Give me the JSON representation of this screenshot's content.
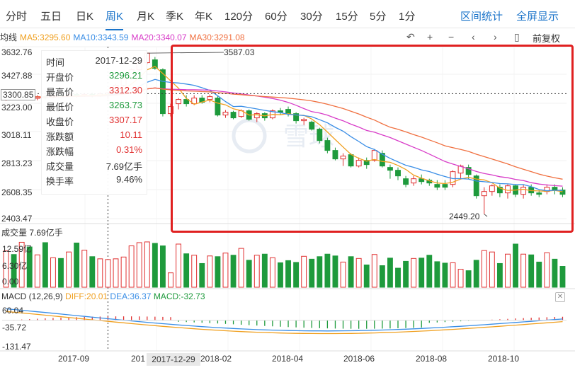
{
  "tabs": [
    {
      "label": "分时"
    },
    {
      "label": "五日"
    },
    {
      "label": "日K"
    },
    {
      "label": "周K"
    },
    {
      "label": "月K"
    },
    {
      "label": "季K"
    },
    {
      "label": "年K"
    },
    {
      "label": "120分"
    },
    {
      "label": "60分"
    },
    {
      "label": "30分"
    },
    {
      "label": "15分"
    },
    {
      "label": "5分"
    },
    {
      "label": "1分"
    }
  ],
  "active_tab": "周K",
  "range_stats": "区间统计",
  "fullscreen": "全屏显示",
  "ma": {
    "label": "均线",
    "ma5": "MA5:3295.60",
    "ma10": "MA10:3343.59",
    "ma20": "MA20:3340.07",
    "ma30": "MA30:3291.08",
    "colors": {
      "ma5": "#f0a020",
      "ma10": "#3a8ee6",
      "ma20": "#d83cc8",
      "ma30": "#f07040"
    }
  },
  "toolbar": {
    "icons": [
      "undo-icon",
      "zoom-in-icon",
      "zoom-out-icon",
      "prev-icon",
      "next-icon",
      "candle-icon"
    ],
    "adjust": "前复权"
  },
  "price_axis": [
    "3632.76",
    "3427.88",
    "3300.85",
    "3223.00",
    "3018.11",
    "2813.23",
    "2608.35",
    "2403.47"
  ],
  "tooltip": {
    "rows": [
      {
        "k": "时间",
        "v": "2017-12-29",
        "c": "#333"
      },
      {
        "k": "开盘价",
        "v": "3296.21",
        "c": "#1e9a3c"
      },
      {
        "k": "最高价",
        "v": "3312.30",
        "c": "#e03030"
      },
      {
        "k": "最低价",
        "v": "3263.73",
        "c": "#1e9a3c"
      },
      {
        "k": "收盘价",
        "v": "3307.17",
        "c": "#e03030"
      },
      {
        "k": "涨跌额",
        "v": "10.11",
        "c": "#e03030"
      },
      {
        "k": "涨跌幅",
        "v": "0.31%",
        "c": "#e03030"
      },
      {
        "k": "成交量",
        "v": "7.69亿手",
        "c": "#333"
      },
      {
        "k": "换手率",
        "v": "9.46%",
        "c": "#333"
      }
    ]
  },
  "annotations": {
    "high": "3587.03",
    "low": "2449.20"
  },
  "volume": {
    "label": "成交量 7.69亿手",
    "axis": [
      "12.59亿",
      "6.30亿",
      "0.00"
    ]
  },
  "macd": {
    "label": "MACD (12,26,9)",
    "diff": "DIFF:20.01",
    "dea": "DEA:36.37",
    "macd": "MACD:-32.73",
    "axis": [
      "60.04",
      "-35.72",
      "-131.47"
    ]
  },
  "dates": [
    "2017-09",
    "201",
    "2018-02",
    "2018-04",
    "2018-06",
    "2018-08",
    "2018-10"
  ],
  "crosshair_date": "2017-12-29",
  "watermark": "雪球",
  "colors": {
    "up": "#e03030",
    "down": "#1e9a3c",
    "accent": "#1a73c9"
  },
  "chart_data": {
    "type": "candlestick",
    "price_range": [
      2403.47,
      3632.76
    ],
    "candles": [
      [
        3268,
        3285,
        3250,
        3298
      ],
      [
        3282,
        3270,
        3255,
        3295
      ],
      [
        3270,
        3285,
        3262,
        3300
      ],
      [
        3285,
        3268,
        3255,
        3292
      ],
      [
        3268,
        3280,
        3255,
        3290
      ],
      [
        3280,
        3275,
        3260,
        3292
      ],
      [
        3275,
        3290,
        3268,
        3300
      ],
      [
        3290,
        3282,
        3270,
        3302
      ],
      [
        3282,
        3295,
        3275,
        3305
      ],
      [
        3295,
        3285,
        3272,
        3308
      ],
      [
        3285,
        3296,
        3278,
        3305
      ],
      [
        3296,
        3286,
        3275,
        3308
      ],
      [
        3286,
        3300,
        3278,
        3310
      ],
      [
        3296,
        3307,
        3263,
        3312
      ],
      [
        3307,
        3360,
        3300,
        3370
      ],
      [
        3360,
        3410,
        3350,
        3420
      ],
      [
        3410,
        3470,
        3400,
        3480
      ],
      [
        3470,
        3520,
        3460,
        3530
      ],
      [
        3520,
        3587,
        3510,
        3587
      ],
      [
        3540,
        3480,
        3470,
        3560
      ],
      [
        3470,
        3160,
        3140,
        3480
      ],
      [
        3160,
        3210,
        3140,
        3230
      ],
      [
        3230,
        3260,
        3190,
        3270
      ],
      [
        3260,
        3230,
        3210,
        3290
      ],
      [
        3230,
        3270,
        3220,
        3290
      ],
      [
        3270,
        3240,
        3230,
        3290
      ],
      [
        3260,
        3280,
        3240,
        3295
      ],
      [
        3270,
        3150,
        3140,
        3285
      ],
      [
        3150,
        3170,
        3130,
        3185
      ],
      [
        3170,
        3130,
        3120,
        3180
      ],
      [
        3140,
        3180,
        3130,
        3190
      ],
      [
        3180,
        3120,
        3110,
        3190
      ],
      [
        3130,
        3160,
        3100,
        3170
      ],
      [
        3160,
        3130,
        3110,
        3170
      ],
      [
        3130,
        3180,
        3120,
        3190
      ],
      [
        3180,
        3170,
        3150,
        3200
      ],
      [
        3190,
        3160,
        3140,
        3210
      ],
      [
        3160,
        3110,
        3090,
        3170
      ],
      [
        3110,
        3120,
        3080,
        3130
      ],
      [
        3100,
        3050,
        3040,
        3110
      ],
      [
        3050,
        2970,
        2950,
        3060
      ],
      [
        2970,
        2900,
        2880,
        2990
      ],
      [
        2900,
        2840,
        2830,
        2920
      ],
      [
        2840,
        2860,
        2790,
        2880
      ],
      [
        2870,
        2790,
        2780,
        2880
      ],
      [
        2790,
        2830,
        2780,
        2850
      ],
      [
        2830,
        2800,
        2770,
        2850
      ],
      [
        2830,
        2900,
        2820,
        2910
      ],
      [
        2880,
        2790,
        2780,
        2900
      ],
      [
        2780,
        2760,
        2700,
        2800
      ],
      [
        2760,
        2720,
        2690,
        2780
      ],
      [
        2700,
        2660,
        2640,
        2720
      ],
      [
        2670,
        2700,
        2650,
        2720
      ],
      [
        2700,
        2680,
        2660,
        2730
      ],
      [
        2690,
        2670,
        2650,
        2700
      ],
      [
        2660,
        2640,
        2620,
        2690
      ],
      [
        2660,
        2640,
        2620,
        2690
      ],
      [
        2660,
        2750,
        2640,
        2760
      ],
      [
        2740,
        2790,
        2700,
        2800
      ],
      [
        2780,
        2730,
        2700,
        2800
      ],
      [
        2720,
        2580,
        2560,
        2730
      ],
      [
        2580,
        2610,
        2450,
        2640
      ],
      [
        2610,
        2650,
        2580,
        2660
      ],
      [
        2640,
        2600,
        2570,
        2660
      ],
      [
        2600,
        2650,
        2560,
        2660
      ],
      [
        2650,
        2590,
        2570,
        2660
      ],
      [
        2590,
        2640,
        2560,
        2660
      ],
      [
        2640,
        2600,
        2580,
        2660
      ],
      [
        2600,
        2590,
        2570,
        2620
      ],
      [
        2610,
        2640,
        2590,
        2660
      ],
      [
        2640,
        2620,
        2590,
        2660
      ],
      [
        2620,
        2590,
        2570,
        2640
      ]
    ],
    "volumes": [
      10.1,
      9.1,
      12.5,
      11.2,
      9.0,
      12.4,
      8.2,
      8.0,
      9.8,
      12.3,
      10.3,
      8.5,
      7.9,
      7.7,
      7.9,
      8.4,
      11.5,
      12.4,
      12.6,
      12.2,
      11.5,
      4.0,
      12.0,
      9.3,
      8.9,
      6.6,
      8.7,
      8.5,
      9.5,
      8.9,
      10.8,
      7.5,
      8.9,
      9.2,
      8.2,
      6.8,
      7.4,
      6.9,
      8.6,
      7.8,
      8.5,
      9.2,
      8.7,
      7.0,
      8.5,
      8.0,
      6.2,
      9.1,
      6.0,
      8.1,
      5.3,
      7.2,
      8.0,
      8.1,
      8.9,
      7.1,
      6.7,
      6.8,
      5.0,
      4.6,
      7.5,
      10.2,
      9.8,
      6.6,
      9.2,
      12.0,
      9.2,
      9.0,
      7.0,
      9.6,
      7.8,
      5.8
    ]
  }
}
